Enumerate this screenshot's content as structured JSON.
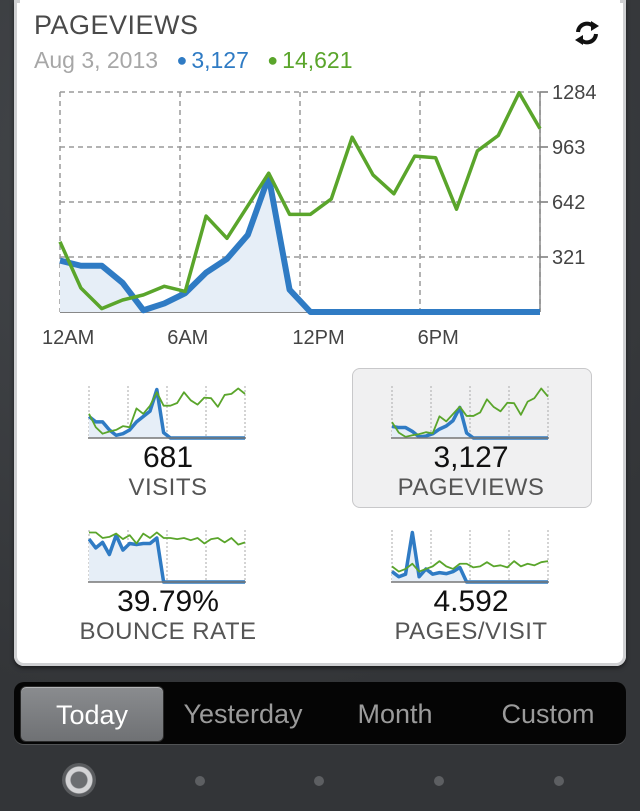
{
  "header": {
    "title": "PAGEVIEWS",
    "date": "Aug 3, 2013",
    "blue_total": "3,127",
    "green_total": "14,621",
    "refresh_icon": "refresh-icon"
  },
  "colors": {
    "blue": "#2f7bc4",
    "green": "#5aa52b",
    "fill": "#e6eef7"
  },
  "chart_data": [
    {
      "type": "line",
      "title": "PAGEVIEWS",
      "x": [
        0,
        1,
        2,
        3,
        4,
        5,
        6,
        7,
        8,
        9,
        10,
        11,
        12,
        13,
        14,
        15,
        16,
        17,
        18,
        19,
        20,
        21,
        22,
        23
      ],
      "x_tick_labels": [
        {
          "x": 0,
          "label": "12AM"
        },
        {
          "x": 6,
          "label": "6AM"
        },
        {
          "x": 12,
          "label": "12PM"
        },
        {
          "x": 18,
          "label": "6PM"
        }
      ],
      "y_ticks": [
        321,
        642,
        963,
        1284
      ],
      "ylim": [
        0,
        1284
      ],
      "grid": true,
      "series": [
        {
          "color": "blue",
          "fill": true,
          "values": [
            300,
            270,
            270,
            170,
            10,
            50,
            110,
            230,
            310,
            450,
            790,
            130,
            0,
            0,
            0,
            0,
            0,
            0,
            0,
            0,
            0,
            0,
            0,
            0
          ]
        },
        {
          "color": "green",
          "values": [
            410,
            140,
            20,
            70,
            100,
            150,
            120,
            560,
            430,
            620,
            810,
            570,
            570,
            660,
            1020,
            800,
            690,
            910,
            900,
            600,
            940,
            1030,
            1280,
            1070
          ]
        }
      ]
    },
    {
      "type": "line",
      "metric": "VISITS",
      "value": "681",
      "series": [
        {
          "color": "blue",
          "fill": true,
          "values": [
            40,
            30,
            30,
            15,
            5,
            8,
            15,
            30,
            40,
            50,
            90,
            10,
            0,
            0,
            0,
            0,
            0,
            0,
            0,
            0,
            0,
            0,
            0,
            0
          ]
        },
        {
          "color": "green",
          "values": [
            45,
            20,
            8,
            12,
            15,
            22,
            20,
            55,
            45,
            60,
            85,
            60,
            60,
            65,
            85,
            70,
            62,
            75,
            74,
            58,
            80,
            82,
            92,
            82
          ]
        }
      ]
    },
    {
      "type": "line",
      "metric": "PAGEVIEWS",
      "value": "3,127",
      "series": [
        {
          "color": "blue",
          "fill": true,
          "values": [
            30,
            27,
            27,
            17,
            3,
            5,
            11,
            23,
            31,
            45,
            79,
            13,
            0,
            0,
            0,
            0,
            0,
            0,
            0,
            0,
            0,
            0,
            0,
            0
          ]
        },
        {
          "color": "green",
          "values": [
            41,
            14,
            3,
            7,
            10,
            15,
            12,
            56,
            43,
            62,
            81,
            57,
            57,
            66,
            100,
            80,
            69,
            91,
            90,
            60,
            94,
            103,
            128,
            107
          ]
        }
      ]
    },
    {
      "type": "line",
      "metric": "BOUNCE RATE",
      "value": "39.79%",
      "series": [
        {
          "color": "blue",
          "fill": true,
          "values": [
            78,
            62,
            72,
            50,
            85,
            58,
            70,
            68,
            70,
            70,
            80,
            0,
            0,
            0,
            0,
            0,
            0,
            0,
            0,
            0,
            0,
            0,
            0,
            0
          ]
        },
        {
          "color": "green",
          "values": [
            90,
            90,
            80,
            82,
            88,
            78,
            85,
            70,
            88,
            80,
            90,
            80,
            80,
            78,
            80,
            76,
            80,
            70,
            78,
            80,
            72,
            80,
            68,
            72
          ]
        }
      ]
    },
    {
      "type": "line",
      "metric": "PAGES/VISIT",
      "value": "4.592",
      "series": [
        {
          "color": "blue",
          "fill": true,
          "values": [
            20,
            10,
            15,
            95,
            10,
            25,
            15,
            18,
            16,
            20,
            28,
            0,
            0,
            0,
            0,
            0,
            0,
            0,
            0,
            0,
            0,
            0,
            0,
            0
          ]
        },
        {
          "color": "green",
          "values": [
            30,
            20,
            25,
            35,
            20,
            25,
            30,
            40,
            30,
            25,
            35,
            35,
            28,
            30,
            38,
            30,
            32,
            28,
            40,
            30,
            35,
            32,
            38,
            40
          ]
        }
      ]
    }
  ],
  "segments": [
    "Today",
    "Yesterday",
    "Month",
    "Custom"
  ],
  "active_segment": "Today",
  "pager_icon": "page-indicator-dots"
}
